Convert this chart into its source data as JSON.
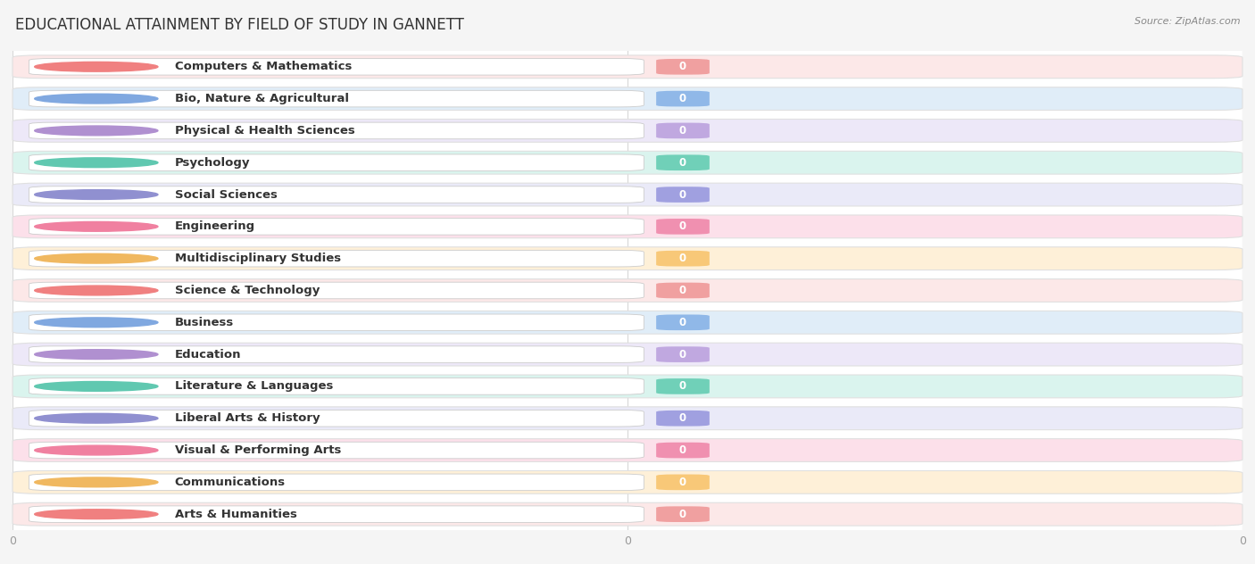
{
  "title": "EDUCATIONAL ATTAINMENT BY FIELD OF STUDY IN GANNETT",
  "source": "Source: ZipAtlas.com",
  "categories": [
    "Computers & Mathematics",
    "Bio, Nature & Agricultural",
    "Physical & Health Sciences",
    "Psychology",
    "Social Sciences",
    "Engineering",
    "Multidisciplinary Studies",
    "Science & Technology",
    "Business",
    "Education",
    "Literature & Languages",
    "Liberal Arts & History",
    "Visual & Performing Arts",
    "Communications",
    "Arts & Humanities"
  ],
  "values": [
    0,
    0,
    0,
    0,
    0,
    0,
    0,
    0,
    0,
    0,
    0,
    0,
    0,
    0,
    0
  ],
  "dot_colors": [
    "#f08080",
    "#80a8e0",
    "#b090d0",
    "#60c8b0",
    "#9090d0",
    "#f080a0",
    "#f0b860",
    "#f08080",
    "#80a8e0",
    "#b090d0",
    "#60c8b0",
    "#9090d0",
    "#f080a0",
    "#f0b860",
    "#f08080"
  ],
  "badge_colors": [
    "#f0a0a0",
    "#90b8e8",
    "#c0a8e0",
    "#70d0b8",
    "#a0a0e0",
    "#f090b0",
    "#f8c878",
    "#f0a0a0",
    "#90b8e8",
    "#c0a8e0",
    "#70d0b8",
    "#a0a0e0",
    "#f090b0",
    "#f8c878",
    "#f0a0a0"
  ],
  "bar_bg_colors": [
    "#fce8e8",
    "#e0edf8",
    "#ede8f8",
    "#daf4ee",
    "#eaeaf8",
    "#fce0ea",
    "#fef0d8",
    "#fce8e8",
    "#e0edf8",
    "#ede8f8",
    "#daf4ee",
    "#eaeaf8",
    "#fce0ea",
    "#fef0d8",
    "#fce8e8"
  ],
  "background_color": "#f5f5f5",
  "plot_bg_color": "#ffffff",
  "title_fontsize": 12,
  "label_fontsize": 9.5,
  "value_fontsize": 8.5,
  "grid_color": "#d8d8d8",
  "tick_color": "#999999"
}
